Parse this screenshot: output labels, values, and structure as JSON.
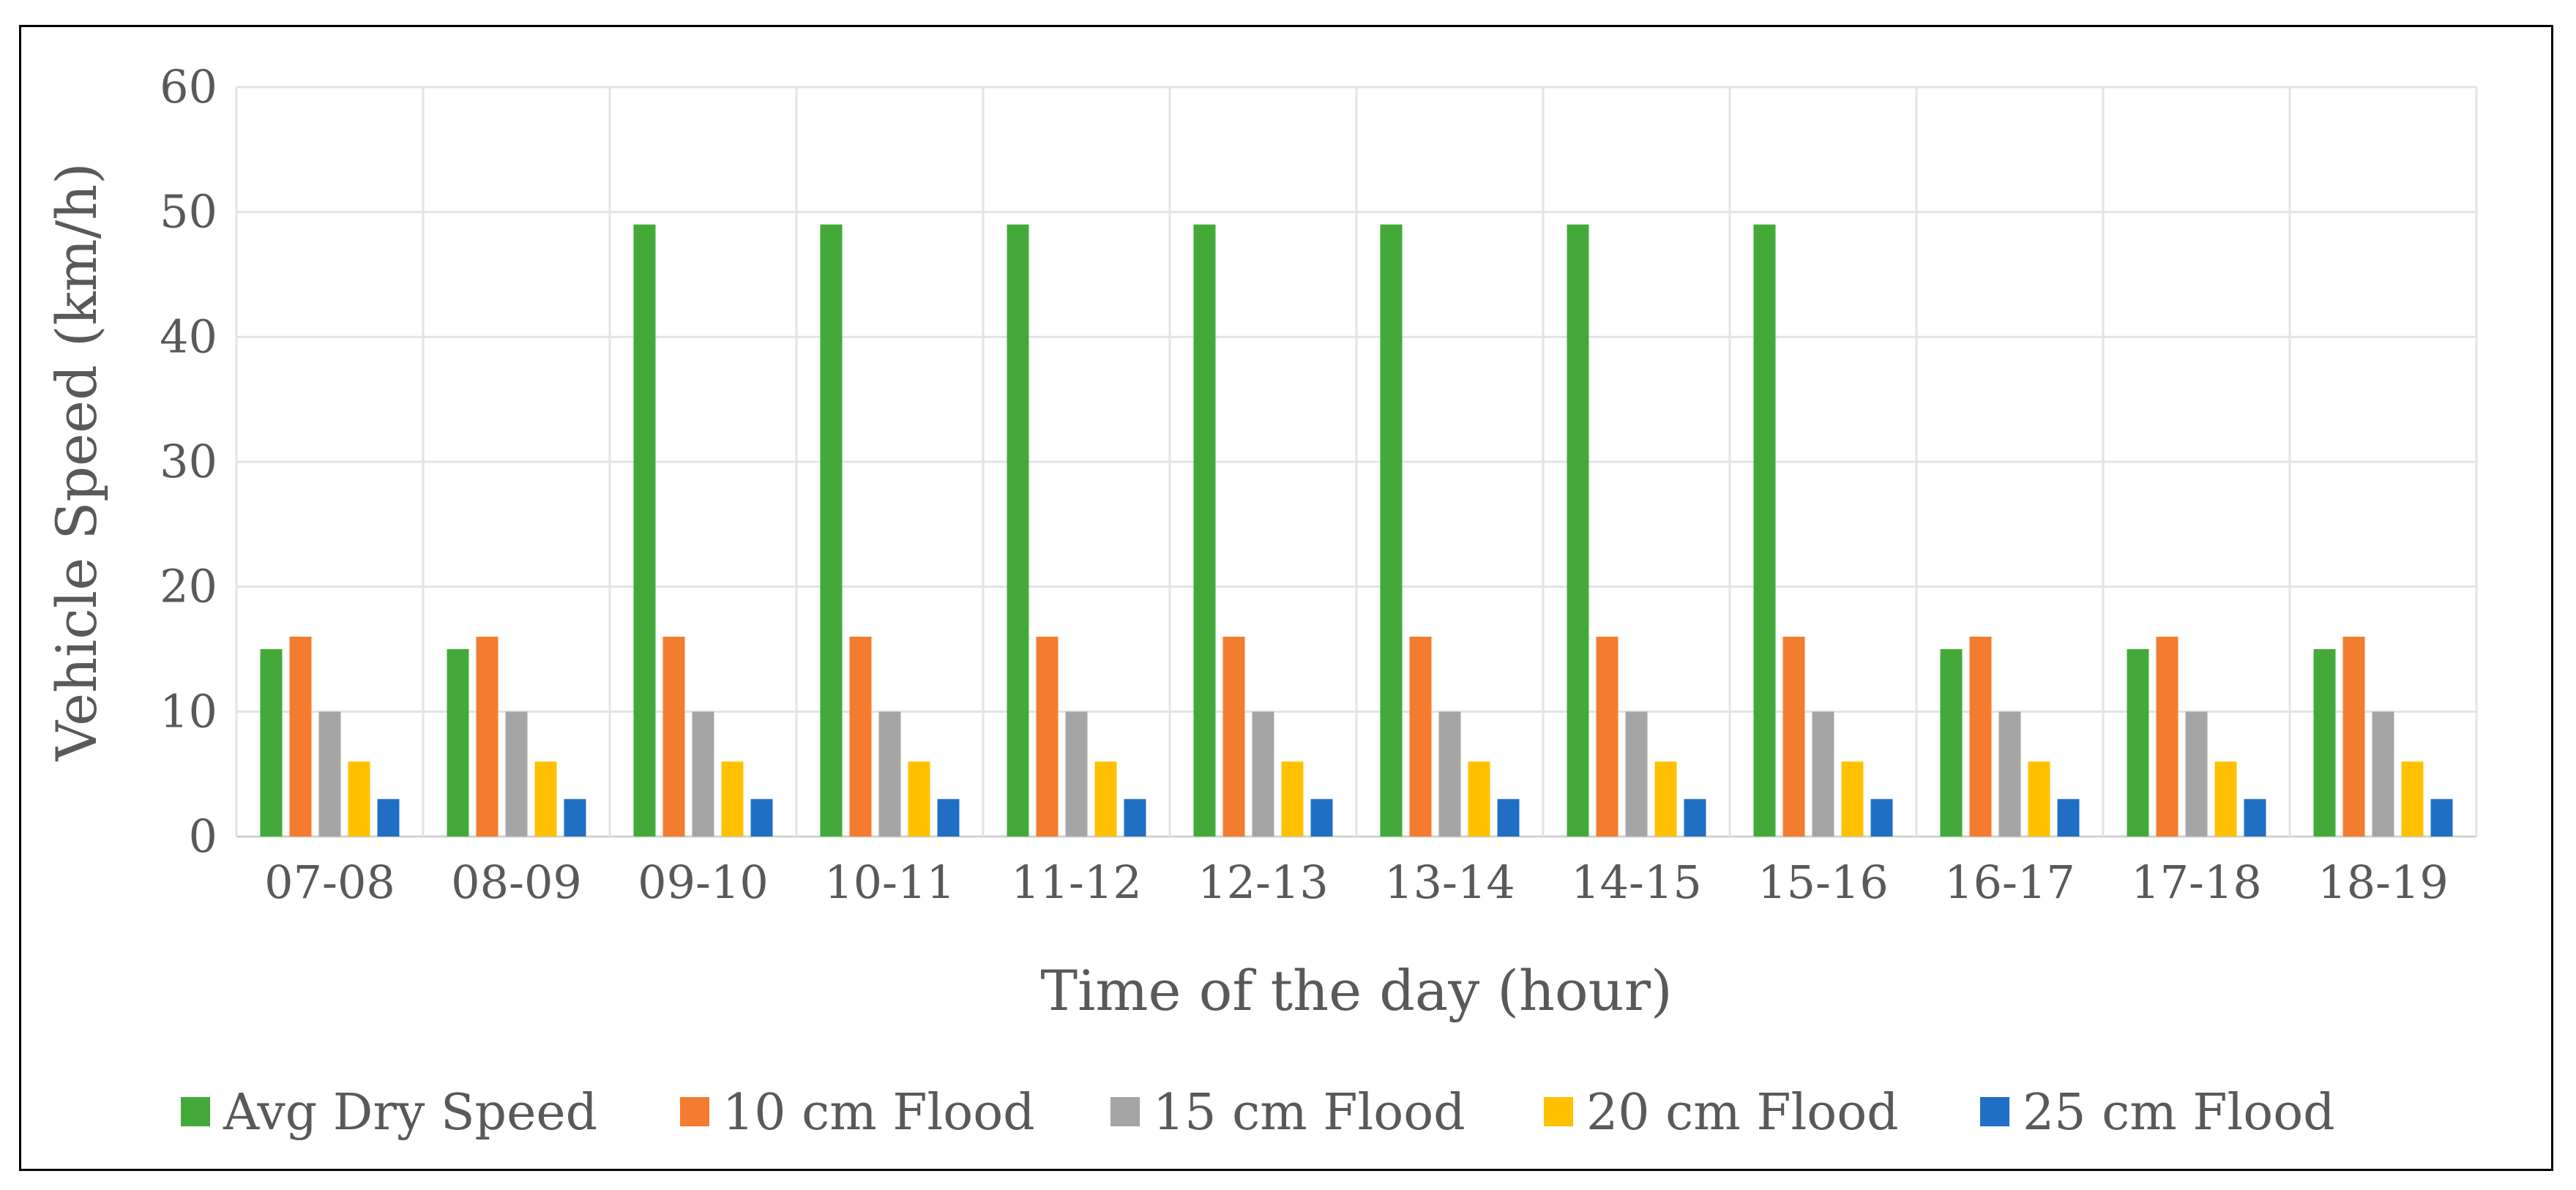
{
  "chart_data": {
    "type": "bar",
    "xlabel": "Time of the day (hour)",
    "ylabel": "Vehicle Speed (km/h)",
    "ylim": [
      0,
      60
    ],
    "yticks": [
      "0",
      "10",
      "20",
      "30",
      "40",
      "50",
      "60"
    ],
    "grid": true,
    "legend_position": "bottom",
    "categories": [
      "07-08",
      "08-09",
      "09-10",
      "10-11",
      "11-12",
      "12-13",
      "13-14",
      "14-15",
      "15-16",
      "16-17",
      "17-18",
      "18-19"
    ],
    "series": [
      {
        "name": "Avg Dry Speed",
        "color": "#43AA3A",
        "values": [
          15,
          15,
          49,
          49,
          49,
          49,
          49,
          49,
          49,
          15,
          15,
          15
        ]
      },
      {
        "name": "10 cm Flood",
        "color": "#F47C30",
        "values": [
          16,
          16,
          16,
          16,
          16,
          16,
          16,
          16,
          16,
          16,
          16,
          16
        ]
      },
      {
        "name": "15 cm Flood",
        "color": "#A5A5A5",
        "values": [
          10,
          10,
          10,
          10,
          10,
          10,
          10,
          10,
          10,
          10,
          10,
          10
        ]
      },
      {
        "name": "20 cm Flood",
        "color": "#FFC000",
        "values": [
          6,
          6,
          6,
          6,
          6,
          6,
          6,
          6,
          6,
          6,
          6,
          6
        ]
      },
      {
        "name": "25 cm Flood",
        "color": "#1F6FC5",
        "values": [
          3,
          3,
          3,
          3,
          3,
          3,
          3,
          3,
          3,
          3,
          3,
          3
        ]
      }
    ]
  }
}
